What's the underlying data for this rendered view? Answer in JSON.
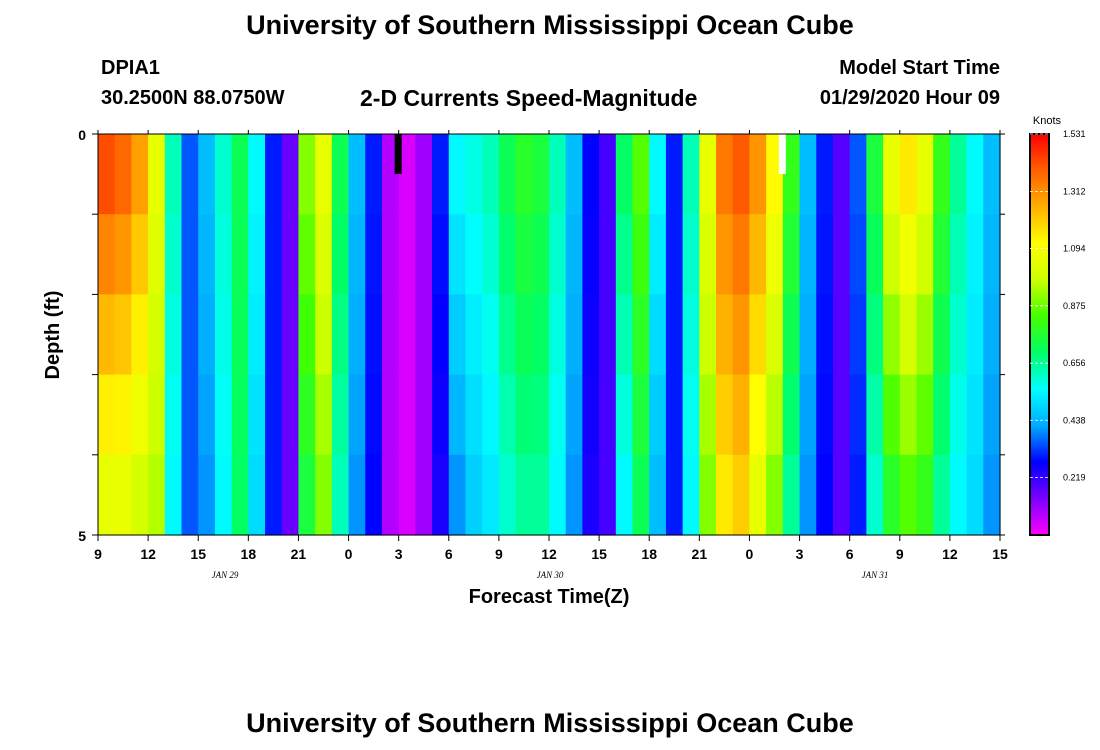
{
  "header": {
    "title": "University of Southern Mississippi Ocean Cube",
    "station_id": "DPIA1",
    "station_coords": "30.2500N 88.0750W",
    "plot_title": "2-D Currents Speed-Magnitude",
    "start_time_label": "Model Start Time",
    "start_time_value": "01/29/2020 Hour 09"
  },
  "footer": {
    "title": "University of Southern Mississippi Ocean Cube"
  },
  "chart_data": {
    "type": "heatmap",
    "title": "2-D Currents Speed-Magnitude",
    "xlabel": "Forecast Time(Z)",
    "ylabel": "Depth (ft)",
    "x_tick_labels": [
      "9",
      "12",
      "15",
      "18",
      "21",
      "0",
      "3",
      "6",
      "9",
      "12",
      "15",
      "18",
      "21",
      "0",
      "3",
      "6",
      "9",
      "12",
      "15"
    ],
    "day_labels": [
      "JAN  29",
      "JAN  30",
      "JAN  31"
    ],
    "xlim_hours": [
      0,
      54
    ],
    "y_tick_labels": [
      "0",
      "5"
    ],
    "ylim": [
      0,
      5
    ],
    "depth_rows": 5,
    "colorbar": {
      "title": "Knots",
      "ticks": [
        1.531,
        1.312,
        1.094,
        0.875,
        0.656,
        0.438,
        0.219
      ],
      "tick_labels": [
        "1.531",
        "1.312",
        "1.094",
        "0.875",
        "0.656",
        "0.438",
        "0.219"
      ],
      "range": [
        0.0,
        1.531
      ],
      "colors": [
        "#ff00ff",
        "#7a00ff",
        "#0000ff",
        "#00aaff",
        "#00ffff",
        "#00ff66",
        "#44ff00",
        "#ccff00",
        "#ffff00",
        "#ffb000",
        "#ff6000",
        "#ff0000"
      ]
    },
    "speed_series": [
      {
        "speed": 1.42,
        "bottom": 1.05
      },
      {
        "speed": 1.38,
        "bottom": 1.05
      },
      {
        "speed": 1.28,
        "bottom": 1.0
      },
      {
        "speed": 1.05,
        "bottom": 0.95
      },
      {
        "speed": 0.62,
        "bottom": 0.55
      },
      {
        "speed": 0.35,
        "bottom": 0.35
      },
      {
        "speed": 0.45,
        "bottom": 0.4
      },
      {
        "speed": 0.6,
        "bottom": 0.55
      },
      {
        "speed": 0.72,
        "bottom": 0.7
      },
      {
        "speed": 0.55,
        "bottom": 0.5
      },
      {
        "speed": 0.3,
        "bottom": 0.3
      },
      {
        "speed": 0.16,
        "bottom": 0.16
      },
      {
        "speed": 0.9,
        "bottom": 0.75
      },
      {
        "speed": 1.05,
        "bottom": 0.9
      },
      {
        "speed": 0.72,
        "bottom": 0.62
      },
      {
        "speed": 0.45,
        "bottom": 0.4
      },
      {
        "speed": 0.3,
        "bottom": 0.28
      },
      {
        "speed": 0.08,
        "bottom": 0.08
      },
      {
        "speed": 0.04,
        "bottom": 0.04
      },
      {
        "speed": 0.1,
        "bottom": 0.1
      },
      {
        "speed": 0.3,
        "bottom": 0.25
      },
      {
        "speed": 0.55,
        "bottom": 0.4
      },
      {
        "speed": 0.58,
        "bottom": 0.48
      },
      {
        "speed": 0.62,
        "bottom": 0.52
      },
      {
        "speed": 0.72,
        "bottom": 0.6
      },
      {
        "speed": 0.78,
        "bottom": 0.65
      },
      {
        "speed": 0.75,
        "bottom": 0.65
      },
      {
        "speed": 0.62,
        "bottom": 0.55
      },
      {
        "speed": 0.45,
        "bottom": 0.4
      },
      {
        "speed": 0.28,
        "bottom": 0.25
      },
      {
        "speed": 0.2,
        "bottom": 0.2
      },
      {
        "speed": 0.7,
        "bottom": 0.55
      },
      {
        "speed": 0.85,
        "bottom": 0.72
      },
      {
        "speed": 0.55,
        "bottom": 0.45
      },
      {
        "speed": 0.3,
        "bottom": 0.3
      },
      {
        "speed": 0.62,
        "bottom": 0.55
      },
      {
        "speed": 1.05,
        "bottom": 0.9
      },
      {
        "speed": 1.35,
        "bottom": 1.15
      },
      {
        "speed": 1.4,
        "bottom": 1.2
      },
      {
        "speed": 1.3,
        "bottom": 1.05
      },
      {
        "speed": 1.12,
        "bottom": 0.9
      },
      {
        "speed": 0.8,
        "bottom": 0.65
      },
      {
        "speed": 0.45,
        "bottom": 0.4
      },
      {
        "speed": 0.3,
        "bottom": 0.28
      },
      {
        "speed": 0.18,
        "bottom": 0.18
      },
      {
        "speed": 0.35,
        "bottom": 0.3
      },
      {
        "speed": 0.75,
        "bottom": 0.6
      },
      {
        "speed": 1.05,
        "bottom": 0.78
      },
      {
        "speed": 1.15,
        "bottom": 0.85
      },
      {
        "speed": 1.05,
        "bottom": 0.8
      },
      {
        "speed": 0.8,
        "bottom": 0.65
      },
      {
        "speed": 0.65,
        "bottom": 0.55
      },
      {
        "speed": 0.55,
        "bottom": 0.5
      },
      {
        "speed": 0.45,
        "bottom": 0.4
      }
    ]
  }
}
